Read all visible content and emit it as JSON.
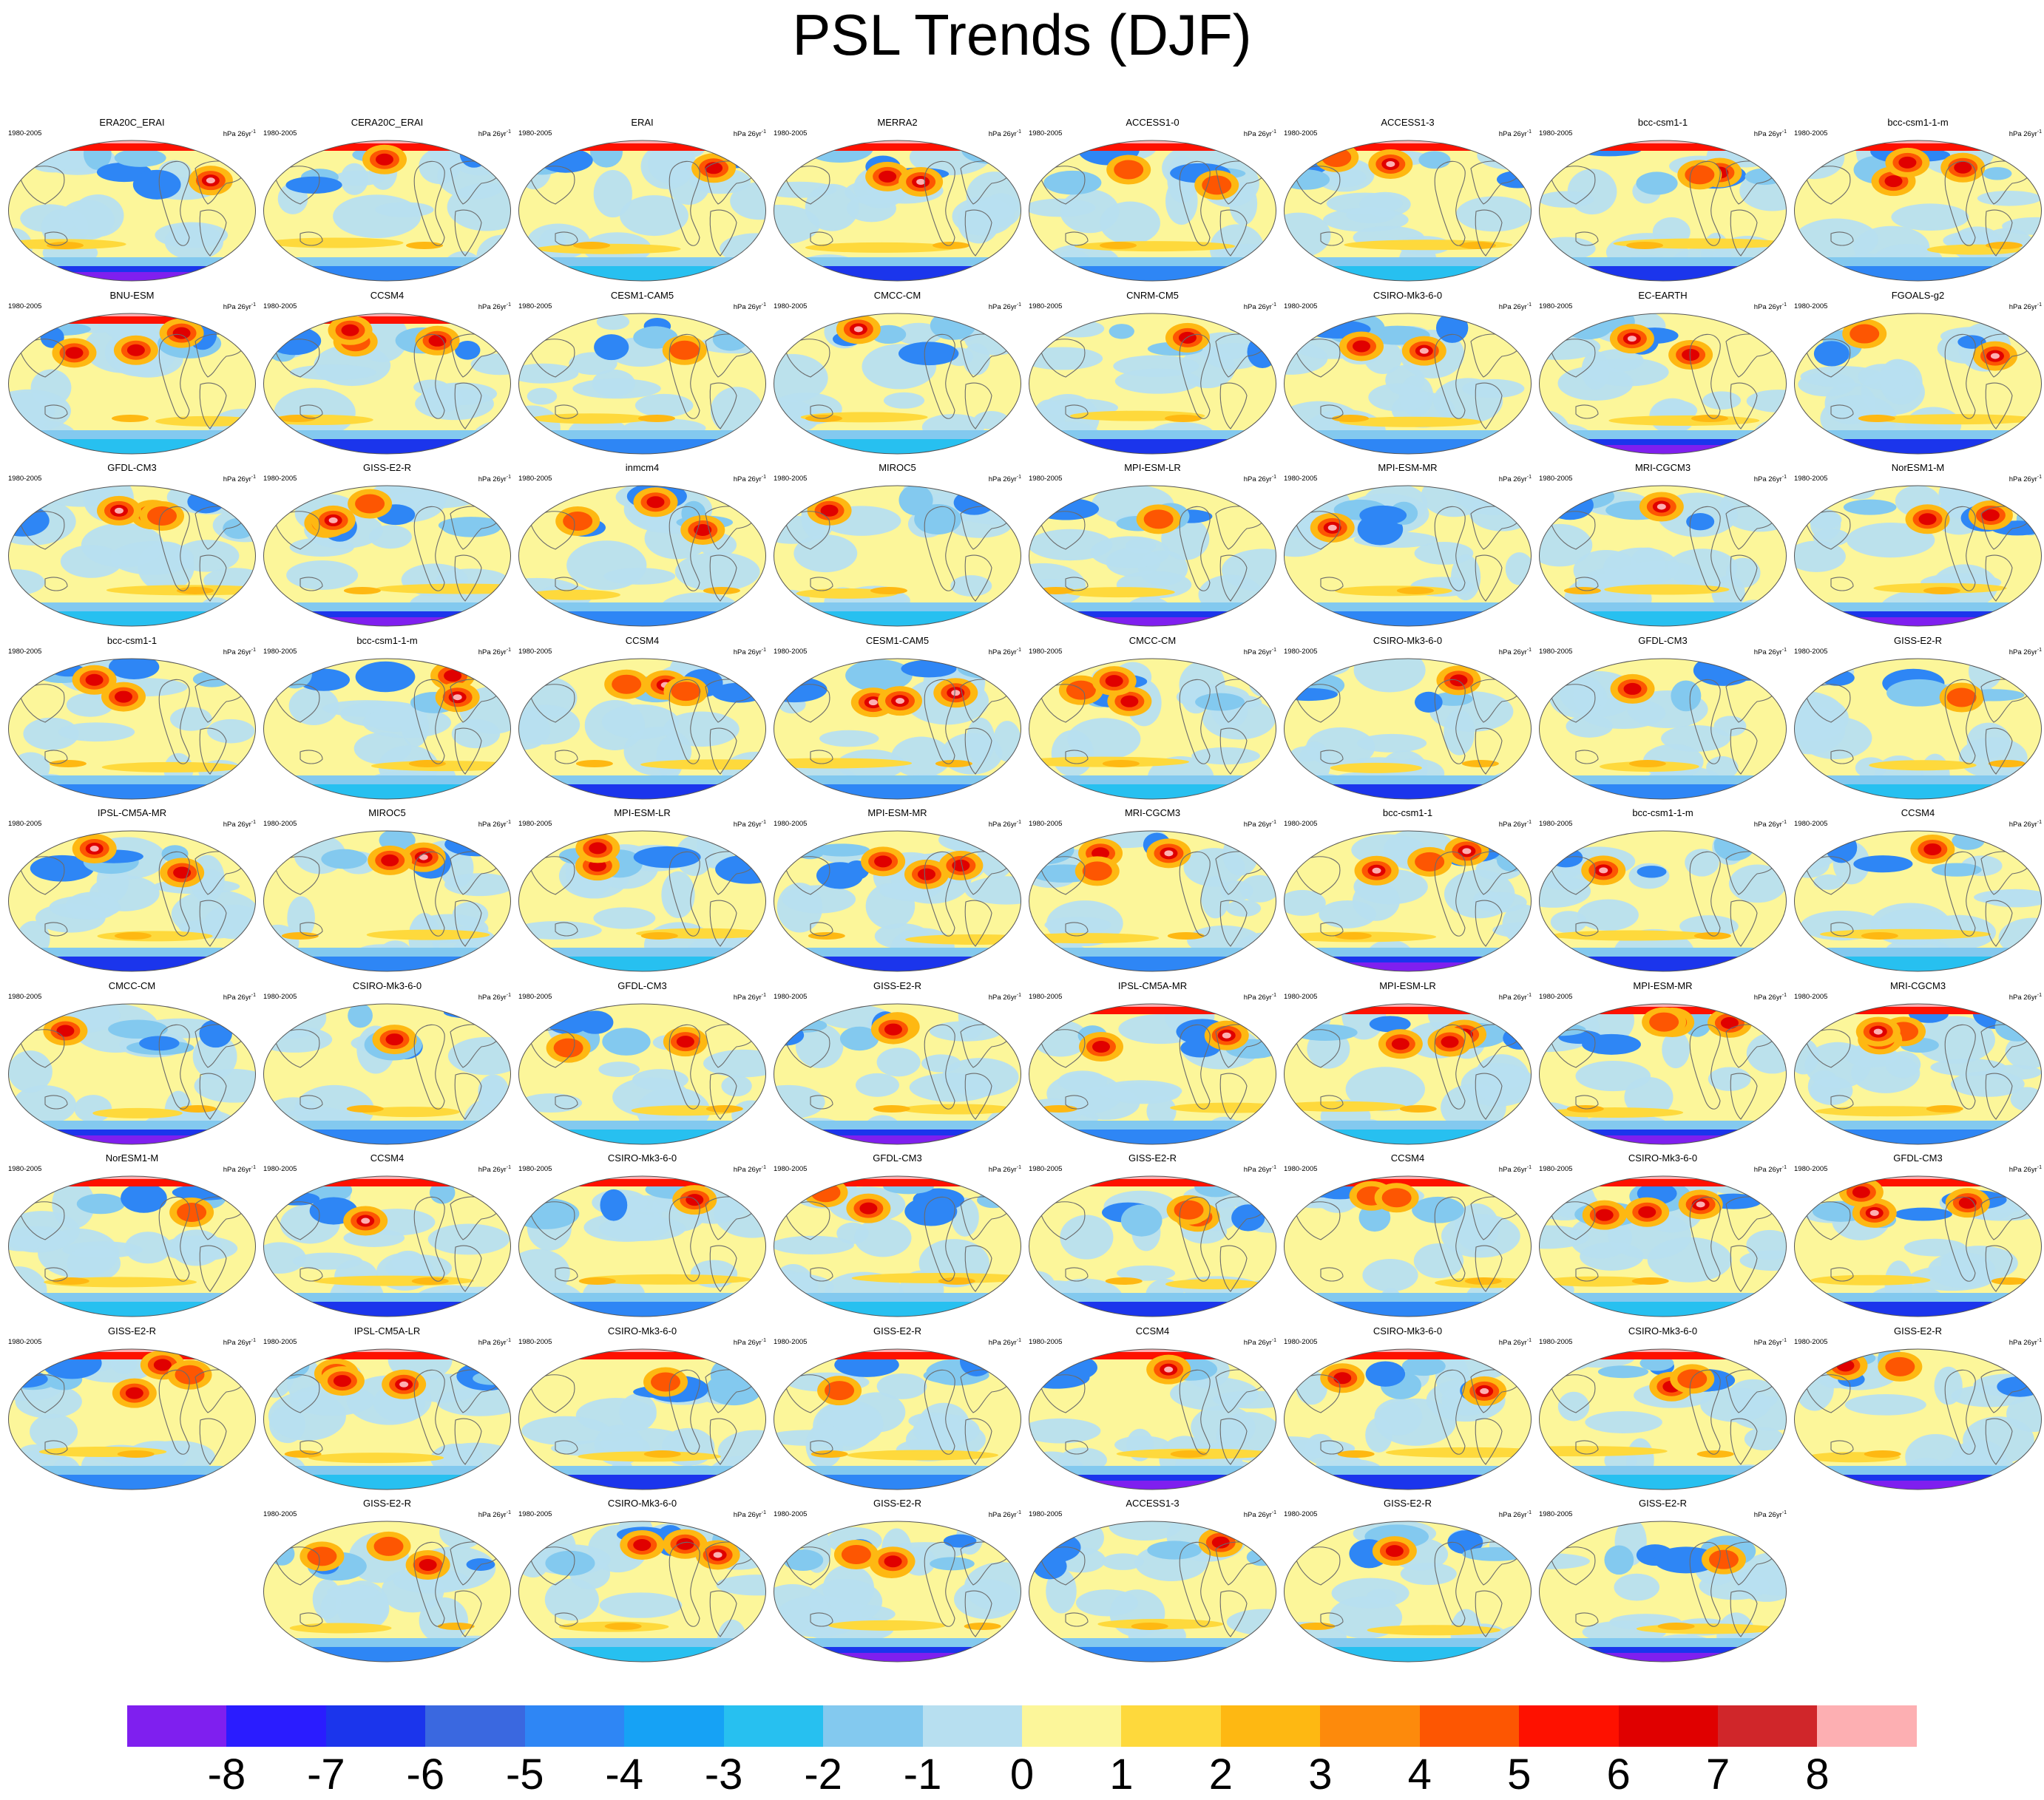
{
  "title": "PSL Trends (DJF)",
  "period": "1980-2005",
  "units": "hPa 26yr",
  "units_exponent": "-1",
  "rows": [
    [
      "ERA20C_ERAI",
      "CERA20C_ERAI",
      "ERAI",
      "MERRA2",
      "ACCESS1-0",
      "ACCESS1-3",
      "bcc-csm1-1",
      "bcc-csm1-1-m"
    ],
    [
      "BNU-ESM",
      "CCSM4",
      "CESM1-CAM5",
      "CMCC-CM",
      "CNRM-CM5",
      "CSIRO-Mk3-6-0",
      "EC-EARTH",
      "FGOALS-g2"
    ],
    [
      "GFDL-CM3",
      "GISS-E2-R",
      "inmcm4",
      "MIROC5",
      "MPI-ESM-LR",
      "MPI-ESM-MR",
      "MRI-CGCM3",
      "NorESM1-M"
    ],
    [
      "bcc-csm1-1",
      "bcc-csm1-1-m",
      "CCSM4",
      "CESM1-CAM5",
      "CMCC-CM",
      "CSIRO-Mk3-6-0",
      "GFDL-CM3",
      "GISS-E2-R"
    ],
    [
      "IPSL-CM5A-MR",
      "MIROC5",
      "MPI-ESM-LR",
      "MPI-ESM-MR",
      "MRI-CGCM3",
      "bcc-csm1-1",
      "bcc-csm1-1-m",
      "CCSM4"
    ],
    [
      "CMCC-CM",
      "CSIRO-Mk3-6-0",
      "GFDL-CM3",
      "GISS-E2-R",
      "IPSL-CM5A-MR",
      "MPI-ESM-LR",
      "MPI-ESM-MR",
      "MRI-CGCM3"
    ],
    [
      "NorESM1-M",
      "CCSM4",
      "CSIRO-Mk3-6-0",
      "GFDL-CM3",
      "GISS-E2-R",
      "CCSM4",
      "CSIRO-Mk3-6-0",
      "GFDL-CM3"
    ],
    [
      "GISS-E2-R",
      "IPSL-CM5A-LR",
      "CSIRO-Mk3-6-0",
      "GISS-E2-R",
      "CCSM4",
      "CSIRO-Mk3-6-0",
      "CSIRO-Mk3-6-0",
      "GISS-E2-R"
    ],
    [
      "GISS-E2-R",
      "CSIRO-Mk3-6-0",
      "GISS-E2-R",
      "ACCESS1-3",
      "GISS-E2-R",
      "GISS-E2-R"
    ]
  ],
  "colorbar": {
    "colors": [
      "#7f1fef",
      "#2a1cff",
      "#1b35ec",
      "#3a68e0",
      "#2e86f5",
      "#16a2f5",
      "#27c0f0",
      "#83c9ef",
      "#b7dff0",
      "#fcf69a",
      "#fed93c",
      "#feb812",
      "#fd8a0c",
      "#fd5602",
      "#fe1100",
      "#e00000",
      "#d0262a",
      "#fdafb2"
    ],
    "labels": [
      "-8",
      "-7",
      "-6",
      "-5",
      "-4",
      "-3",
      "-2",
      "-1",
      "0",
      "1",
      "2",
      "3",
      "4",
      "5",
      "6",
      "7",
      "8"
    ]
  }
}
